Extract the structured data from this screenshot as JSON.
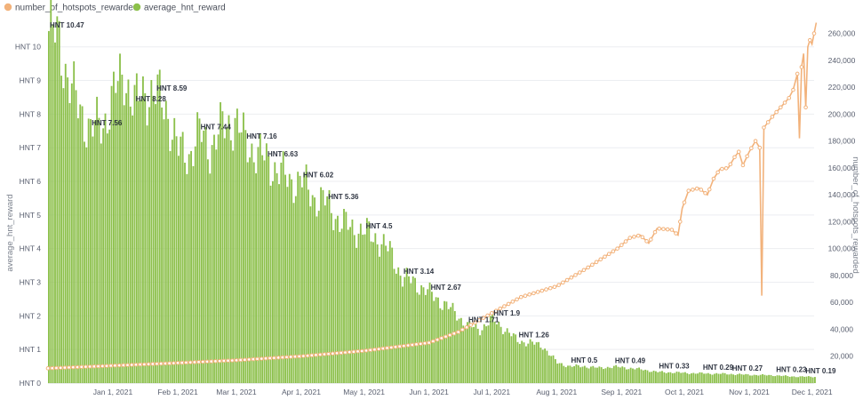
{
  "chart_data": {
    "type": "bar+line",
    "legend": {
      "placement": "top-left",
      "items": [
        {
          "label": "number_of_hotspots_rewarded",
          "color": "#f2b27b",
          "series": "number_of_hotspots_rewarded"
        },
        {
          "label": "average_hnt_reward",
          "color": "#8cc04b",
          "series": "average_hnt_reward"
        }
      ]
    },
    "axes": {
      "y_left": {
        "label": "average_hnt_reward",
        "range": [
          0,
          10.6
        ],
        "ticks": [
          0,
          1,
          2,
          3,
          4,
          5,
          6,
          7,
          8,
          9,
          10
        ],
        "tick_labels": [
          "HNT 0",
          "HNT 1",
          "HNT 2",
          "HNT 3",
          "HNT 4",
          "HNT 5",
          "HNT 6",
          "HNT 7",
          "HNT 8",
          "HNT 9",
          "HNT 10"
        ]
      },
      "y_right": {
        "label": "number_of_hotspots_rewarded",
        "range": [
          0,
          265000
        ],
        "ticks": [
          20000,
          40000,
          60000,
          80000,
          100000,
          120000,
          140000,
          160000,
          180000,
          200000,
          220000,
          240000,
          260000
        ],
        "tick_labels": [
          "20,000",
          "40,000",
          "60,000",
          "80,000",
          "100,000",
          "120,000",
          "140,000",
          "160,000",
          "180,000",
          "200,000",
          "220,000",
          "240,000",
          "260,000"
        ]
      },
      "x": {
        "type": "date",
        "range": [
          "2020-12-01",
          "2021-12-02"
        ],
        "ticks": [
          "2021-01-01",
          "2021-02-01",
          "2021-03-01",
          "2021-04-01",
          "2021-05-01",
          "2021-06-01",
          "2021-07-01",
          "2021-08-01",
          "2021-09-01",
          "2021-10-01",
          "2021-11-01",
          "2021-12-01"
        ],
        "tick_labels": [
          "Jan 1, 2021",
          "Feb 1, 2021",
          "Mar 1, 2021",
          "Apr 1, 2021",
          "May 1, 2021",
          "Jun 1, 2021",
          "Jul 1, 2021",
          "Aug 1, 2021",
          "Sep 1, 2021",
          "Oct 1, 2021",
          "Nov 1, 2021",
          "Dec 1, 2021"
        ]
      },
      "grid": true
    },
    "series": [
      {
        "name": "average_hnt_reward",
        "kind": "bar",
        "color": "#8cc04b",
        "points": [
          [
            "2020-12-01",
            10.47
          ],
          [
            "2020-12-06",
            10.2
          ],
          [
            "2020-12-10",
            9.1
          ],
          [
            "2020-12-15",
            8.2
          ],
          [
            "2020-12-21",
            7.56
          ],
          [
            "2020-12-27",
            7.7
          ],
          [
            "2021-01-01",
            8.6
          ],
          [
            "2021-01-06",
            9.2
          ],
          [
            "2021-01-11",
            8.28
          ],
          [
            "2021-01-16",
            8.7
          ],
          [
            "2021-01-21",
            8.59
          ],
          [
            "2021-01-26",
            8.2
          ],
          [
            "2021-02-01",
            6.9
          ],
          [
            "2021-02-06",
            6.8
          ],
          [
            "2021-02-11",
            7.44
          ],
          [
            "2021-02-16",
            7.0
          ],
          [
            "2021-02-22",
            7.6
          ],
          [
            "2021-02-28",
            7.8
          ],
          [
            "2021-03-05",
            7.16
          ],
          [
            "2021-03-11",
            6.8
          ],
          [
            "2021-03-15",
            6.63
          ],
          [
            "2021-03-21",
            6.3
          ],
          [
            "2021-03-26",
            6.0
          ],
          [
            "2021-04-01",
            6.02
          ],
          [
            "2021-04-07",
            5.5
          ],
          [
            "2021-04-13",
            5.36
          ],
          [
            "2021-04-19",
            4.8
          ],
          [
            "2021-04-25",
            4.6
          ],
          [
            "2021-05-01",
            4.5
          ],
          [
            "2021-05-07",
            4.3
          ],
          [
            "2021-05-13",
            3.9
          ],
          [
            "2021-05-19",
            3.14
          ],
          [
            "2021-05-25",
            3.0
          ],
          [
            "2021-06-01",
            2.67
          ],
          [
            "2021-06-07",
            2.4
          ],
          [
            "2021-06-13",
            2.1
          ],
          [
            "2021-06-19",
            1.71
          ],
          [
            "2021-06-25",
            1.6
          ],
          [
            "2021-07-01",
            1.9
          ],
          [
            "2021-07-07",
            1.6
          ],
          [
            "2021-07-13",
            1.26
          ],
          [
            "2021-07-19",
            1.2
          ],
          [
            "2021-07-25",
            1.1
          ],
          [
            "2021-08-01",
            0.6
          ],
          [
            "2021-08-07",
            0.5
          ],
          [
            "2021-08-14",
            0.5
          ],
          [
            "2021-08-21",
            0.45
          ],
          [
            "2021-08-28",
            0.49
          ],
          [
            "2021-09-04",
            0.45
          ],
          [
            "2021-09-11",
            0.4
          ],
          [
            "2021-09-18",
            0.33
          ],
          [
            "2021-09-25",
            0.32
          ],
          [
            "2021-10-02",
            0.3
          ],
          [
            "2021-10-09",
            0.29
          ],
          [
            "2021-10-16",
            0.28
          ],
          [
            "2021-10-23",
            0.27
          ],
          [
            "2021-10-30",
            0.25
          ],
          [
            "2021-11-06",
            0.24
          ],
          [
            "2021-11-13",
            0.23
          ],
          [
            "2021-11-20",
            0.2
          ],
          [
            "2021-11-27",
            0.19
          ],
          [
            "2021-12-02",
            0.19
          ]
        ]
      },
      {
        "name": "number_of_hotspots_rewarded",
        "kind": "line",
        "color": "#f2b27b",
        "points": [
          [
            "2020-12-01",
            11000
          ],
          [
            "2021-01-01",
            13000
          ],
          [
            "2021-02-01",
            15000
          ],
          [
            "2021-03-01",
            17000
          ],
          [
            "2021-04-01",
            20000
          ],
          [
            "2021-05-01",
            24000
          ],
          [
            "2021-06-01",
            30000
          ],
          [
            "2021-06-15",
            38000
          ],
          [
            "2021-07-01",
            52000
          ],
          [
            "2021-07-15",
            64000
          ],
          [
            "2021-08-01",
            72000
          ],
          [
            "2021-08-15",
            85000
          ],
          [
            "2021-08-25",
            95000
          ],
          [
            "2021-08-30",
            100000
          ],
          [
            "2021-09-05",
            108000
          ],
          [
            "2021-09-10",
            110000
          ],
          [
            "2021-09-14",
            104000
          ],
          [
            "2021-09-18",
            115000
          ],
          [
            "2021-09-25",
            114000
          ],
          [
            "2021-09-28",
            110000
          ],
          [
            "2021-09-30",
            130000
          ],
          [
            "2021-10-03",
            143000
          ],
          [
            "2021-10-08",
            145000
          ],
          [
            "2021-10-12",
            140000
          ],
          [
            "2021-10-15",
            152000
          ],
          [
            "2021-10-18",
            159000
          ],
          [
            "2021-10-22",
            160000
          ],
          [
            "2021-10-25",
            168000
          ],
          [
            "2021-10-27",
            172000
          ],
          [
            "2021-10-29",
            162000
          ],
          [
            "2021-11-01",
            172000
          ],
          [
            "2021-11-04",
            180000
          ],
          [
            "2021-11-06",
            175000
          ],
          [
            "2021-11-07",
            65000
          ],
          [
            "2021-11-08",
            190000
          ],
          [
            "2021-11-12",
            198000
          ],
          [
            "2021-11-16",
            205000
          ],
          [
            "2021-11-20",
            212000
          ],
          [
            "2021-11-22",
            218000
          ],
          [
            "2021-11-24",
            230000
          ],
          [
            "2021-11-25",
            182000
          ],
          [
            "2021-11-26",
            235000
          ],
          [
            "2021-11-27",
            245000
          ],
          [
            "2021-11-28",
            205000
          ],
          [
            "2021-11-29",
            250000
          ],
          [
            "2021-11-30",
            255000
          ],
          [
            "2021-12-01",
            252000
          ],
          [
            "2021-12-02",
            260000
          ],
          [
            "2021-12-03",
            268000
          ]
        ]
      }
    ],
    "annotations": [
      {
        "text": "HNT 10.47",
        "date": "2020-12-01",
        "value": 10.47
      },
      {
        "text": "HNT 7.56",
        "date": "2020-12-21",
        "value": 7.56
      },
      {
        "text": "HNT 8.28",
        "date": "2021-01-11",
        "value": 8.28
      },
      {
        "text": "HNT 8.59",
        "date": "2021-01-21",
        "value": 8.59
      },
      {
        "text": "HNT 7.44",
        "date": "2021-02-11",
        "value": 7.44
      },
      {
        "text": "HNT 7.16",
        "date": "2021-03-05",
        "value": 7.16
      },
      {
        "text": "HNT 6.63",
        "date": "2021-03-15",
        "value": 6.63
      },
      {
        "text": "HNT 6.02",
        "date": "2021-04-01",
        "value": 6.02
      },
      {
        "text": "HNT 5.36",
        "date": "2021-04-13",
        "value": 5.36
      },
      {
        "text": "HNT 4.5",
        "date": "2021-05-01",
        "value": 4.5
      },
      {
        "text": "HNT 3.14",
        "date": "2021-05-19",
        "value": 3.14
      },
      {
        "text": "HNT 2.67",
        "date": "2021-06-01",
        "value": 2.67
      },
      {
        "text": "HNT 1.71",
        "date": "2021-06-19",
        "value": 1.71
      },
      {
        "text": "HNT 1.9",
        "date": "2021-07-01",
        "value": 1.9
      },
      {
        "text": "HNT 1.26",
        "date": "2021-07-13",
        "value": 1.26
      },
      {
        "text": "HNT 0.5",
        "date": "2021-08-07",
        "value": 0.5
      },
      {
        "text": "HNT 0.49",
        "date": "2021-08-28",
        "value": 0.49
      },
      {
        "text": "HNT 0.33",
        "date": "2021-09-18",
        "value": 0.33
      },
      {
        "text": "HNT 0.29",
        "date": "2021-10-09",
        "value": 0.29
      },
      {
        "text": "HNT 0.27",
        "date": "2021-10-23",
        "value": 0.27
      },
      {
        "text": "HNT 0.23",
        "date": "2021-11-13",
        "value": 0.23
      },
      {
        "text": "HNT 0.19",
        "date": "2021-11-27",
        "value": 0.19
      }
    ]
  }
}
